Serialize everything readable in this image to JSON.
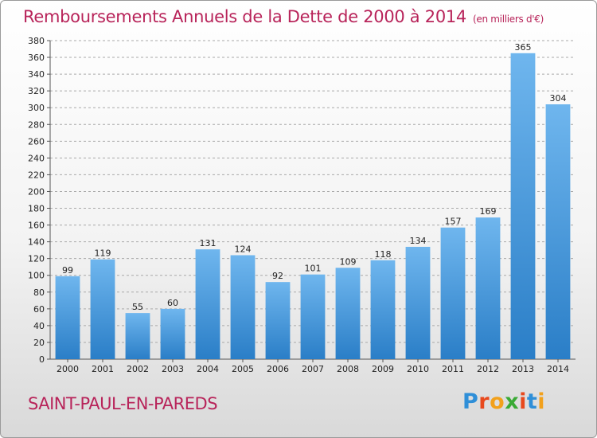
{
  "header": {
    "title": "Remboursements Annuels de la Dette de 2000 à 2014",
    "unit": "(en milliers d'€)"
  },
  "commune": "SAINT-PAUL-EN-PAREDS",
  "brand": {
    "letters": [
      "P",
      "r",
      "o",
      "x",
      "i",
      "t",
      "i"
    ],
    "colors": [
      "#2f8fd8",
      "#e8491d",
      "#f2a11c",
      "#3aaa35",
      "#e8491d",
      "#2f8fd8",
      "#f2a11c"
    ]
  },
  "colors": {
    "bar_top": "#6fb6ee",
    "bar_bottom": "#2a7ec7",
    "grid": "#a9a9a9"
  },
  "chart_data": {
    "type": "bar",
    "title": "Remboursements Annuels de la Dette de 2000 à 2014",
    "ylabel": "",
    "xlabel": "",
    "categories": [
      "2000",
      "2001",
      "2002",
      "2003",
      "2004",
      "2005",
      "2006",
      "2007",
      "2008",
      "2009",
      "2010",
      "2011",
      "2012",
      "2013",
      "2014"
    ],
    "values": [
      99,
      119,
      55,
      60,
      131,
      124,
      92,
      101,
      109,
      118,
      134,
      157,
      169,
      365,
      304
    ],
    "ylim": [
      0,
      380
    ],
    "ytick_step": 20,
    "grid": true,
    "grid_style": "dashed"
  }
}
